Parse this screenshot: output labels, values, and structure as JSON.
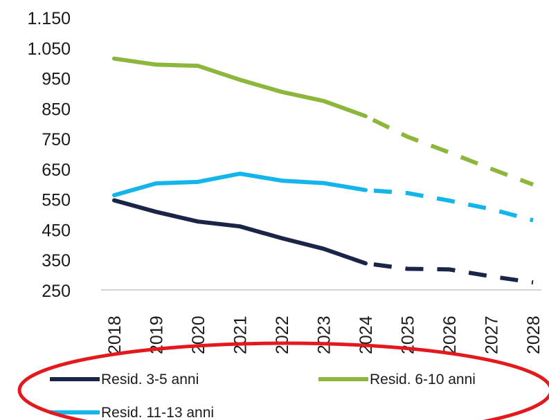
{
  "chart_data": {
    "type": "line",
    "title": "",
    "xlabel": "",
    "ylabel": "",
    "categories": [
      "2018",
      "2019",
      "2020",
      "2021",
      "2022",
      "2023",
      "2024",
      "2025",
      "2026",
      "2027",
      "2028"
    ],
    "ylim": [
      250,
      1150
    ],
    "yticks": [
      "1.150",
      "1.050",
      "950",
      "850",
      "750",
      "650",
      "550",
      "450",
      "350",
      "250"
    ],
    "ytick_values": [
      1150,
      1050,
      950,
      850,
      750,
      650,
      550,
      450,
      350,
      250
    ],
    "actual_through": "2024",
    "projection_style": "dashed",
    "series": [
      {
        "name": "Resid. 3-5 anni",
        "color": "#1b2548",
        "values": [
          548,
          510,
          478,
          462,
          423,
          388,
          340,
          322,
          320,
          297,
          277
        ]
      },
      {
        "name": "Resid. 6-10 anni",
        "color": "#8db63c",
        "values": [
          1016,
          996,
          992,
          946,
          906,
          876,
          826,
          758,
          706,
          652,
          600
        ]
      },
      {
        "name": "Resid. 11-13 anni",
        "color": "#13b5ea",
        "values": [
          565,
          604,
          609,
          636,
          613,
          605,
          582,
          572,
          547,
          519,
          482
        ]
      }
    ],
    "grid": false,
    "legend_position": "bottom"
  },
  "annotation": {
    "shape": "ellipse",
    "color": "#e3191d"
  }
}
